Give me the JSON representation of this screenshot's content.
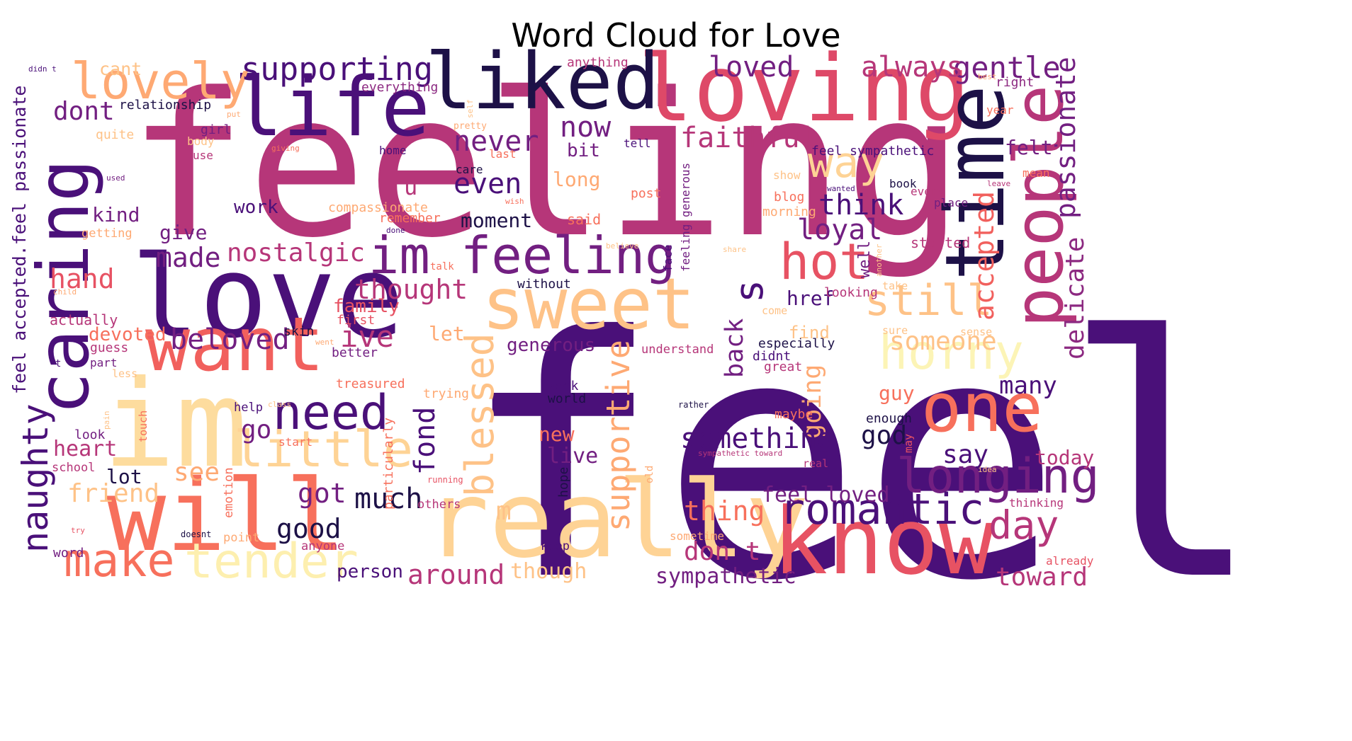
{
  "title": "Word Cloud for Love",
  "palette": [
    "#4a1079",
    "#1d1147",
    "#b63679",
    "#e75263",
    "#fb8761",
    "#fec287",
    "#fcfdbf",
    "#721f81"
  ],
  "words": [
    {
      "t": "feel",
      "c": "#4a1079"
    },
    {
      "t": "feeling",
      "c": "#b63679"
    },
    {
      "t": "love",
      "c": "#4a1079"
    },
    {
      "t": "im",
      "c": "#fddc9e"
    },
    {
      "t": "will",
      "c": "#f7705c"
    },
    {
      "t": "really",
      "c": "#fed395"
    },
    {
      "t": "know",
      "c": "#e75263"
    },
    {
      "t": "loving",
      "c": "#de4968"
    },
    {
      "t": "liked",
      "c": "#1d1147"
    },
    {
      "t": "life",
      "c": "#4a1079"
    },
    {
      "t": "sweet",
      "c": "#fec287"
    },
    {
      "t": "time",
      "c": "#1d1147"
    },
    {
      "t": "people",
      "c": "#b63679"
    },
    {
      "t": "caring",
      "c": "#4a1079"
    },
    {
      "t": "want",
      "c": "#f1605d"
    },
    {
      "t": "one",
      "c": "#f7705c"
    },
    {
      "t": "lovely",
      "c": "#fea973"
    },
    {
      "t": "im feeling",
      "c": "#721f81"
    },
    {
      "t": "little",
      "c": "#fed395"
    },
    {
      "t": "need",
      "c": "#4a1079"
    },
    {
      "t": "tender",
      "c": "#fdefaf"
    },
    {
      "t": "make",
      "c": "#f7705c"
    },
    {
      "t": "naughty",
      "c": "#4a1079"
    },
    {
      "t": "horny",
      "c": "#fcf4b6"
    },
    {
      "t": "longing",
      "c": "#721f81"
    },
    {
      "t": "romantic",
      "c": "#4a1079"
    },
    {
      "t": "hot",
      "c": "#e75263"
    },
    {
      "t": "still",
      "c": "#fec287"
    },
    {
      "t": "day",
      "c": "#b63679"
    },
    {
      "t": "blessed",
      "c": "#fec287"
    },
    {
      "t": "supportive",
      "c": "#fea973"
    },
    {
      "t": "way",
      "c": "#fed395"
    },
    {
      "t": "supporting",
      "c": "#4a1079"
    },
    {
      "t": "gentle",
      "c": "#721f81"
    },
    {
      "t": "always",
      "c": "#b63679"
    },
    {
      "t": "loved",
      "c": "#721f81"
    },
    {
      "t": "passionate",
      "c": "#721f81"
    },
    {
      "t": "accepted",
      "c": "#f1605d"
    },
    {
      "t": "delicate",
      "c": "#8c2981"
    },
    {
      "t": "faithful",
      "c": "#b63679"
    },
    {
      "t": "s",
      "c": "#4a1079"
    },
    {
      "t": "now",
      "c": "#721f81"
    },
    {
      "t": "never",
      "c": "#721f81"
    },
    {
      "t": "even",
      "c": "#4a1079"
    },
    {
      "t": "think",
      "c": "#4a1079"
    },
    {
      "t": "loyal",
      "c": "#721f81"
    },
    {
      "t": "nostalgic",
      "c": "#b63679"
    },
    {
      "t": "thought",
      "c": "#b63679"
    },
    {
      "t": "beloved",
      "c": "#721f81"
    },
    {
      "t": "ive",
      "c": "#b63679"
    },
    {
      "t": "made",
      "c": "#721f81"
    },
    {
      "t": "hand",
      "c": "#e75263"
    },
    {
      "t": "dont",
      "c": "#721f81"
    },
    {
      "t": "kind",
      "c": "#721f81"
    },
    {
      "t": "give",
      "c": "#721f81"
    },
    {
      "t": "work",
      "c": "#4a1079"
    },
    {
      "t": "u",
      "c": "#b63679"
    },
    {
      "t": "bit",
      "c": "#721f81"
    },
    {
      "t": "long",
      "c": "#fea973"
    },
    {
      "t": "said",
      "c": "#f7705c"
    },
    {
      "t": "moment",
      "c": "#1d1147"
    },
    {
      "t": "family",
      "c": "#e75263"
    },
    {
      "t": "devoted",
      "c": "#f7705c"
    },
    {
      "t": "generous",
      "c": "#721f81"
    },
    {
      "t": "someone",
      "c": "#fec287"
    },
    {
      "t": "back",
      "c": "#721f81"
    },
    {
      "t": "href",
      "c": "#4a1079"
    },
    {
      "t": "going",
      "c": "#fea973"
    },
    {
      "t": "many",
      "c": "#4a1079"
    },
    {
      "t": "guy",
      "c": "#f7705c"
    },
    {
      "t": "fond",
      "c": "#4a1079"
    },
    {
      "t": "go",
      "c": "#721f81"
    },
    {
      "t": "something",
      "c": "#4a1079"
    },
    {
      "t": "god",
      "c": "#1d1147"
    },
    {
      "t": "say",
      "c": "#4a1079"
    },
    {
      "t": "today",
      "c": "#b63679"
    },
    {
      "t": "heart",
      "c": "#b63679"
    },
    {
      "t": "friend",
      "c": "#fec287"
    },
    {
      "t": "see",
      "c": "#fea973"
    },
    {
      "t": "got",
      "c": "#721f81"
    },
    {
      "t": "much",
      "c": "#1d1147"
    },
    {
      "t": "m",
      "c": "#fec287"
    },
    {
      "t": "lot",
      "c": "#1d1147"
    },
    {
      "t": "good",
      "c": "#1d1147"
    },
    {
      "t": "thing",
      "c": "#f7705c"
    },
    {
      "t": "feel loved",
      "c": "#721f81"
    },
    {
      "t": "don t",
      "c": "#b63679"
    },
    {
      "t": "around",
      "c": "#b63679"
    },
    {
      "t": "though",
      "c": "#fec287"
    },
    {
      "t": "person",
      "c": "#4a1079"
    },
    {
      "t": "sympathetic",
      "c": "#721f81"
    },
    {
      "t": "toward",
      "c": "#b63679"
    },
    {
      "t": "live",
      "c": "#721f81"
    },
    {
      "t": "new",
      "c": "#f7705c"
    },
    {
      "t": "let",
      "c": "#fea973"
    },
    {
      "t": "feel accepted.feel passionate",
      "c": "#4a1079"
    },
    {
      "t": "cant",
      "c": "#fec287"
    },
    {
      "t": "relationship",
      "c": "#1d1147"
    },
    {
      "t": "everything",
      "c": "#8c2981"
    },
    {
      "t": "anything",
      "c": "#b63679"
    },
    {
      "t": "quite",
      "c": "#fec287"
    },
    {
      "t": "girl",
      "c": "#721f81"
    },
    {
      "t": "body",
      "c": "#fec287"
    },
    {
      "t": "use",
      "c": "#b63679"
    },
    {
      "t": "home",
      "c": "#4a1079"
    },
    {
      "t": "care",
      "c": "#1d1147"
    },
    {
      "t": "last",
      "c": "#f7705c"
    },
    {
      "t": "pretty",
      "c": "#fea973"
    },
    {
      "t": "tell",
      "c": "#4a1079"
    },
    {
      "t": "feel sympathetic",
      "c": "#4a1079"
    },
    {
      "t": "felt",
      "c": "#721f81"
    },
    {
      "t": "year",
      "c": "#f7705c"
    },
    {
      "t": "right",
      "c": "#8c2981"
    },
    {
      "t": "mean",
      "c": "#f7705c"
    },
    {
      "t": "book",
      "c": "#1d1147"
    },
    {
      "t": "every",
      "c": "#b63679"
    },
    {
      "t": "place",
      "c": "#721f81"
    },
    {
      "t": "started",
      "c": "#b63679"
    },
    {
      "t": "blog",
      "c": "#f7705c"
    },
    {
      "t": "morning",
      "c": "#fea973"
    },
    {
      "t": "show",
      "c": "#fec287"
    },
    {
      "t": "post",
      "c": "#f7705c"
    },
    {
      "t": "compassionate",
      "c": "#fea973"
    },
    {
      "t": "remember",
      "c": "#f7705c"
    },
    {
      "t": "getting",
      "c": "#fea973"
    },
    {
      "t": "feeling generous",
      "c": "#721f81"
    },
    {
      "t": "well",
      "c": "#721f81"
    },
    {
      "t": "looking",
      "c": "#b63679"
    },
    {
      "t": "without",
      "c": "#1d1147"
    },
    {
      "t": "actually",
      "c": "#b63679"
    },
    {
      "t": "guess",
      "c": "#b63679"
    },
    {
      "t": "part",
      "c": "#721f81"
    },
    {
      "t": "first",
      "c": "#e75263"
    },
    {
      "t": "skin",
      "c": "#1d1147"
    },
    {
      "t": "better",
      "c": "#721f81"
    },
    {
      "t": "treasured",
      "c": "#f7705c"
    },
    {
      "t": "understand",
      "c": "#b63679"
    },
    {
      "t": "especially",
      "c": "#1d1147"
    },
    {
      "t": "didnt",
      "c": "#4a1079"
    },
    {
      "t": "great",
      "c": "#b63679"
    },
    {
      "t": "find",
      "c": "#fec287"
    },
    {
      "t": "enough",
      "c": "#1d1147"
    },
    {
      "t": "maybe",
      "c": "#f7705c"
    },
    {
      "t": "week",
      "c": "#4a1079"
    },
    {
      "t": "world",
      "c": "#1d1147"
    },
    {
      "t": "help",
      "c": "#4a1079"
    },
    {
      "t": "look",
      "c": "#721f81"
    },
    {
      "t": "start",
      "c": "#f7705c"
    },
    {
      "t": "school",
      "c": "#b63679"
    },
    {
      "t": "trying",
      "c": "#fea973"
    },
    {
      "t": "particularly",
      "c": "#f7705c"
    },
    {
      "t": "emotion",
      "c": "#f7705c"
    },
    {
      "t": "touch",
      "c": "#f7705c"
    },
    {
      "t": "point",
      "c": "#fea973"
    },
    {
      "t": "hope",
      "c": "#1d1147"
    },
    {
      "t": "keep",
      "c": "#4a1079"
    },
    {
      "t": "sometime",
      "c": "#fea973"
    },
    {
      "t": "already",
      "c": "#e75263"
    },
    {
      "t": "thinking",
      "c": "#b63679"
    },
    {
      "t": "word",
      "c": "#721f81"
    },
    {
      "t": "doesnt",
      "c": "#1d1147"
    },
    {
      "t": "anyone",
      "c": "#b63679"
    },
    {
      "t": "others",
      "c": "#b63679"
    },
    {
      "t": "running",
      "c": "#e75263"
    },
    {
      "t": "real",
      "c": "#b63679"
    },
    {
      "t": "rather",
      "c": "#1d1147"
    },
    {
      "t": "didn t",
      "c": "#4a1079"
    },
    {
      "t": "put",
      "c": "#fea973"
    },
    {
      "t": "giving",
      "c": "#f7705c"
    },
    {
      "t": "used",
      "c": "#721f81"
    },
    {
      "t": "done",
      "c": "#4a1079"
    },
    {
      "t": "talk",
      "c": "#f7705c"
    },
    {
      "t": "face",
      "c": "#4a1079"
    },
    {
      "t": "share",
      "c": "#fec287"
    },
    {
      "t": "leave",
      "c": "#b63679"
    },
    {
      "t": "wanted",
      "c": "#4a1079"
    },
    {
      "t": "wish",
      "c": "#f7705c"
    },
    {
      "t": "best",
      "c": "#fea973"
    },
    {
      "t": "believe",
      "c": "#fec287"
    },
    {
      "t": "self",
      "c": "#fec287"
    },
    {
      "t": "child",
      "c": "#fea973"
    },
    {
      "t": "went",
      "c": "#fea973"
    },
    {
      "t": "less",
      "c": "#fec287"
    },
    {
      "t": "class",
      "c": "#fec287"
    },
    {
      "t": "pain",
      "c": "#fec287"
    },
    {
      "t": "try",
      "c": "#e75263"
    },
    {
      "t": "t",
      "c": "#4a1079"
    },
    {
      "t": "old",
      "c": "#fea973"
    },
    {
      "t": "idea",
      "c": "#fec287"
    },
    {
      "t": "sure",
      "c": "#fec287"
    },
    {
      "t": "sense",
      "c": "#fec287"
    },
    {
      "t": "come",
      "c": "#fec287"
    },
    {
      "t": "take",
      "c": "#fec287"
    },
    {
      "t": "another",
      "c": "#fec287"
    },
    {
      "t": "may",
      "c": "#e75263"
    },
    {
      "t": "sympathetic toward",
      "c": "#b63679"
    }
  ]
}
